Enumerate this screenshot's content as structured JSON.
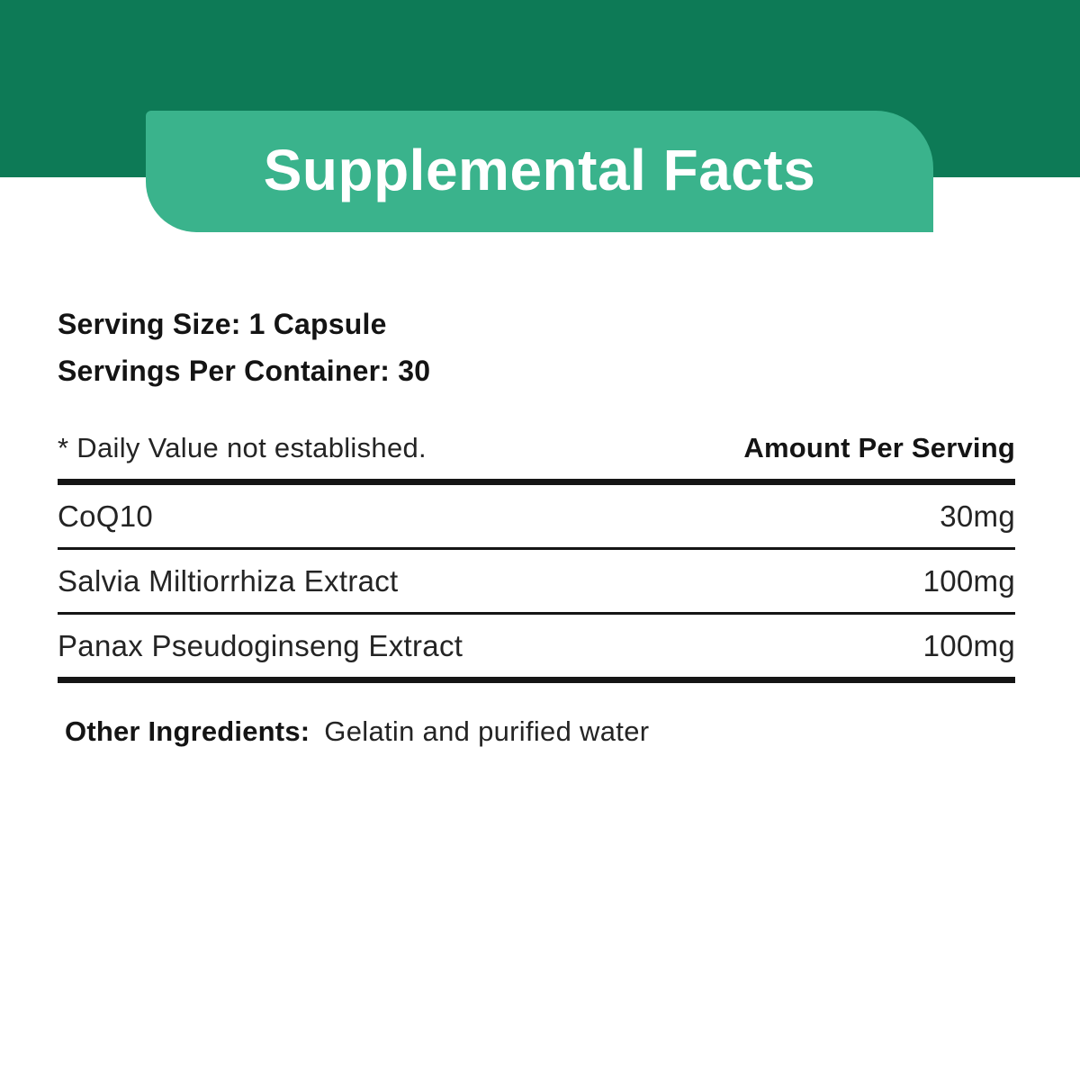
{
  "label": {
    "title": "Supplemental Facts",
    "serving": {
      "size_line": "Serving Size: 1 Capsule",
      "per_container_line": "Servings Per Container: 30"
    },
    "table": {
      "footnote": "* Daily Value not established.",
      "amount_header": "Amount Per Serving",
      "rows": [
        {
          "name": "CoQ10",
          "amount": "30mg"
        },
        {
          "name": "Salvia Miltiorrhiza Extract",
          "amount": "100mg"
        },
        {
          "name": "Panax Pseudoginseng Extract",
          "amount": "100mg"
        }
      ]
    },
    "other_ingredients": {
      "label": "Other Ingredients:",
      "value": "Gelatin and purified water"
    }
  },
  "colors": {
    "band-green": "#0d7a56",
    "banner-green": "#3ab38c",
    "text-black": "#141414",
    "text-light": "#242424",
    "rule-black": "#151515",
    "background": "#ffffff"
  }
}
